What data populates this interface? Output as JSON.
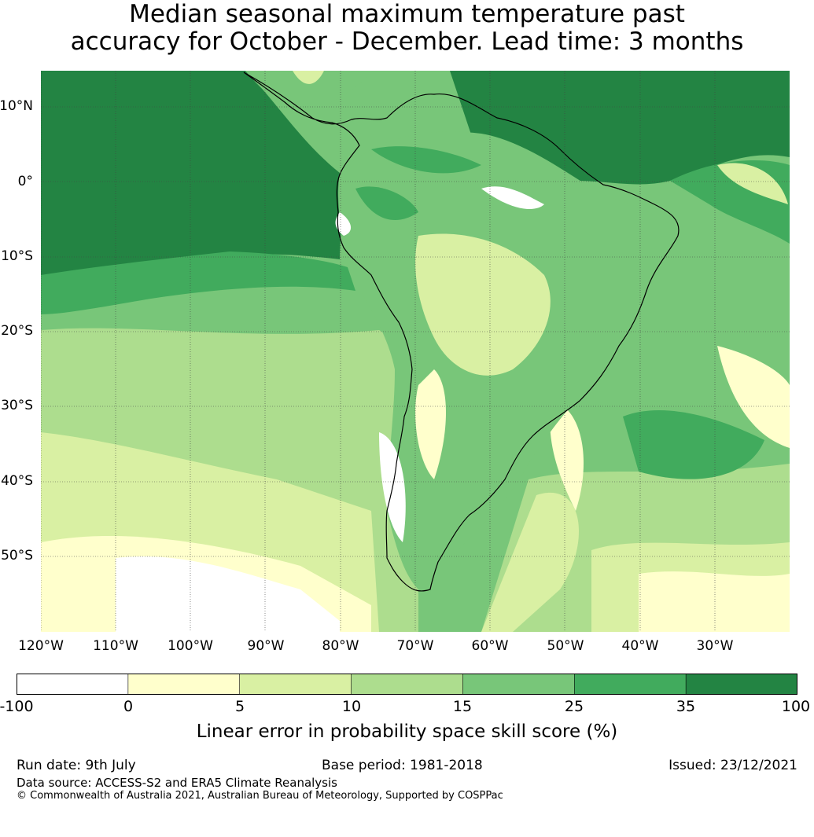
{
  "title": {
    "line1": "Median seasonal maximum temperature past",
    "line2": "accuracy for October - December. Lead time: 3 months"
  },
  "map": {
    "lat_labels": [
      "10°N",
      "0°",
      "10°S",
      "20°S",
      "30°S",
      "40°S",
      "50°S"
    ],
    "lon_labels": [
      "120°W",
      "110°W",
      "100°W",
      "90°W",
      "80°W",
      "70°W",
      "60°W",
      "50°W",
      "40°W",
      "30°W"
    ]
  },
  "colorbar": {
    "ticks": [
      "-100",
      "0",
      "5",
      "10",
      "15",
      "25",
      "35",
      "100"
    ],
    "colors": [
      "#ffffff",
      "#ffffcc",
      "#d9f0a3",
      "#addd8e",
      "#78c679",
      "#41ab5d",
      "#238443"
    ],
    "label": "Linear error in probability space skill score (%)"
  },
  "footer": {
    "run_date": "Run date: 9th July",
    "base_period": "Base period: 1981-2018",
    "issued": "Issued: 23/12/2021",
    "data_source": "Data source: ACCESS-S2 and ERA5 Climate Reanalysis",
    "copyright": "© Commonwealth of Australia 2021, Australian Bureau of Meteorology, Supported by COSPPac"
  }
}
